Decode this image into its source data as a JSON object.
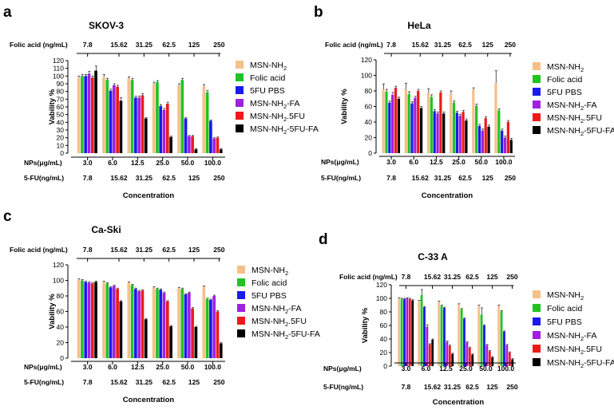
{
  "colors": {
    "MSN-NH2": "#f5c08b",
    "Folic acid": "#22c222",
    "5FU PBS": "#1a1aee",
    "MSN-NH2-FA": "#a020e0",
    "MSN-NH2.5FU": "#ee1a1a",
    "MSN-NH2-5FU-FA": "#000000"
  },
  "chart_data": [
    {
      "type": "bar",
      "panel_letter": "a",
      "title": "SKOV-3",
      "xlabel": "Concentration",
      "ylabel": "Vability %",
      "ylim": [
        0,
        120
      ],
      "yticks": [
        "0",
        "10",
        "20",
        "30",
        "40",
        "50",
        "60",
        "70",
        "80",
        "90",
        "100",
        "110",
        "120"
      ],
      "folic_label": "Folic acid (ng/mL)",
      "np_label": "NPs(μg/mL)",
      "fu_label": "5-FU(ng/mL)",
      "categories": [
        "3.0",
        "6.0",
        "12.5",
        "25.0",
        "50.0",
        "100.0"
      ],
      "folic_ticks": [
        "7.8",
        "15.62",
        "31.25",
        "62.5",
        "125",
        "250"
      ],
      "fu_ticks": [
        "7.8",
        "15.62",
        "31.25",
        "62.5",
        "125",
        "250"
      ],
      "series": [
        {
          "name": "MSN-NH2",
          "values": [
            98,
            99,
            97,
            90,
            88,
            87
          ],
          "errors": [
            2,
            3,
            2,
            2,
            2,
            2
          ]
        },
        {
          "name": "Folic acid",
          "values": [
            100,
            95,
            95,
            92,
            95,
            79
          ],
          "errors": [
            2,
            2,
            2,
            2,
            2,
            2
          ]
        },
        {
          "name": "5FU PBS",
          "values": [
            100,
            81,
            72,
            61,
            45,
            42
          ],
          "errors": [
            2,
            2,
            2,
            2,
            1,
            1
          ]
        },
        {
          "name": "MSN-NH2-FA",
          "values": [
            103,
            88,
            72,
            56,
            22,
            19
          ],
          "errors": [
            3,
            2,
            2,
            2,
            1,
            1
          ]
        },
        {
          "name": "MSN-NH2.5FU",
          "values": [
            98,
            86,
            75,
            64,
            22,
            20
          ],
          "errors": [
            2,
            2,
            2,
            2,
            1,
            1
          ]
        },
        {
          "name": "MSN-NH2-5FU-FA",
          "values": [
            107,
            68,
            45,
            21,
            5,
            5
          ],
          "errors": [
            6,
            4,
            1,
            1,
            1,
            1
          ]
        }
      ]
    },
    {
      "type": "bar",
      "panel_letter": "b",
      "title": "HeLa",
      "xlabel": "Concentration",
      "ylabel": "Vability %",
      "ylim": [
        0,
        120
      ],
      "yticks": [
        "0",
        "20",
        "40",
        "60",
        "80",
        "100",
        "120"
      ],
      "folic_label": "Folic acid (ng/mL)",
      "np_label": "NPs(μg/mL)",
      "fu_label": "5-FU(ng/mL)",
      "categories": [
        "3.0",
        "6.0",
        "12.5",
        "25.0",
        "50.0",
        "100.0"
      ],
      "folic_ticks": [
        "7.8",
        "15.62",
        "31.25",
        "62.5",
        "125",
        "250"
      ],
      "fu_ticks": [
        "7.8",
        "15.62",
        "31.25",
        "62.5",
        "125",
        "250"
      ],
      "series": [
        {
          "name": "MSN-NH2",
          "values": [
            82,
            82,
            77,
            77,
            82,
            90
          ],
          "errors": [
            7,
            8,
            6,
            3,
            2,
            16
          ]
        },
        {
          "name": "Folic acid",
          "values": [
            79,
            76,
            72,
            65,
            61,
            55
          ],
          "errors": [
            3,
            3,
            3,
            2,
            2,
            2
          ]
        },
        {
          "name": "5FU PBS",
          "values": [
            65,
            64,
            54,
            52,
            35,
            29
          ],
          "errors": [
            2,
            2,
            2,
            2,
            2,
            2
          ]
        },
        {
          "name": "MSN-NH2-FA",
          "values": [
            75,
            71,
            51,
            48,
            29,
            20
          ],
          "errors": [
            3,
            2,
            2,
            2,
            2,
            2
          ]
        },
        {
          "name": "MSN-NH2.5FU",
          "values": [
            84,
            80,
            78,
            53,
            45,
            40
          ],
          "errors": [
            2,
            2,
            2,
            2,
            2,
            2
          ]
        },
        {
          "name": "MSN-NH2-5FU-FA",
          "values": [
            70,
            58,
            51,
            42,
            34,
            17
          ],
          "errors": [
            2,
            2,
            2,
            2,
            2,
            2
          ]
        }
      ]
    },
    {
      "type": "bar",
      "panel_letter": "c",
      "title": "Ca-Ski",
      "xlabel": "Concentration",
      "ylabel": "Vability %",
      "ylim": [
        0,
        120
      ],
      "yticks": [
        "0",
        "20",
        "40",
        "60",
        "80",
        "100",
        "120"
      ],
      "folic_label": "Folic acid (ng/mL)",
      "np_label": "NPs(μg/mL)",
      "fu_label": "5-FU(ng/mL)",
      "categories": [
        "3.0",
        "6.0",
        "12.5",
        "25.0",
        "50.0",
        "100.0"
      ],
      "folic_ticks": [
        "7.8",
        "15.62",
        "31.25",
        "62.5",
        "125",
        "250"
      ],
      "fu_ticks": [
        "7.8",
        "15.62",
        "31.25",
        "62.5",
        "125",
        "250"
      ],
      "series": [
        {
          "name": "MSN-NH2",
          "values": [
            101,
            98,
            97,
            91,
            90,
            92
          ],
          "errors": [
            1,
            1,
            1,
            1,
            1,
            1
          ]
        },
        {
          "name": "Folic acid",
          "values": [
            100,
            96,
            94,
            89,
            89,
            76
          ],
          "errors": [
            1,
            1,
            1,
            1,
            1,
            1
          ]
        },
        {
          "name": "5FU PBS",
          "values": [
            98,
            91,
            89,
            88,
            82,
            75
          ],
          "errors": [
            1,
            1,
            1,
            1,
            1,
            1
          ]
        },
        {
          "name": "MSN-NH2-FA",
          "values": [
            97,
            93,
            86,
            84,
            84,
            80
          ],
          "errors": [
            1,
            1,
            1,
            1,
            1,
            1
          ]
        },
        {
          "name": "MSN-NH2.5FU",
          "values": [
            96,
            89,
            87,
            73,
            64,
            60
          ],
          "errors": [
            1,
            1,
            1,
            1,
            1,
            1
          ]
        },
        {
          "name": "MSN-NH2-5FU-FA",
          "values": [
            98,
            73,
            50,
            41,
            40,
            19
          ],
          "errors": [
            1,
            1,
            1,
            1,
            1,
            1
          ]
        }
      ]
    },
    {
      "type": "bar",
      "panel_letter": "d",
      "title": "C-33 A",
      "xlabel": "Concentration",
      "ylabel": "Vability %",
      "ylim": [
        0,
        120
      ],
      "yticks": [
        "0",
        "20",
        "40",
        "60",
        "80",
        "100",
        "120"
      ],
      "folic_label": "Folic acid (ng/mL)",
      "np_label": "NPs(μg/mL)",
      "fu_label": "5-FU(ng/mL)",
      "categories": [
        "3.0",
        "6.0",
        "12.5",
        "25.0",
        "50.0",
        "100.0"
      ],
      "folic_ticks": [
        "7.8",
        "15.62",
        "31.25",
        "62.5",
        "125",
        "250"
      ],
      "fu_ticks": [
        "7.8",
        "15.62",
        "31.25",
        "62.5",
        "125",
        "250"
      ],
      "series": [
        {
          "name": "MSN-NH2",
          "values": [
            100,
            96,
            95,
            91,
            89,
            89
          ],
          "errors": [
            1,
            1,
            1,
            1,
            1,
            1
          ]
        },
        {
          "name": "Folic acid",
          "values": [
            99,
            105,
            89,
            84,
            76,
            81
          ],
          "errors": [
            1,
            8,
            1,
            1,
            10,
            1
          ]
        },
        {
          "name": "5FU PBS",
          "values": [
            99,
            87,
            86,
            70,
            60,
            51
          ],
          "errors": [
            1,
            1,
            1,
            1,
            1,
            1
          ]
        },
        {
          "name": "MSN-NH2-FA",
          "values": [
            100,
            58,
            36,
            35,
            31,
            31
          ],
          "errors": [
            1,
            3,
            1,
            1,
            1,
            1
          ]
        },
        {
          "name": "MSN-NH2.5FU",
          "values": [
            99,
            32,
            30,
            27,
            22,
            20
          ],
          "errors": [
            1,
            1,
            1,
            1,
            1,
            1
          ]
        },
        {
          "name": "MSN-NH2-5FU-FA",
          "values": [
            97,
            39,
            18,
            17,
            13,
            10
          ],
          "errors": [
            1,
            1,
            1,
            1,
            1,
            1
          ]
        }
      ]
    }
  ]
}
